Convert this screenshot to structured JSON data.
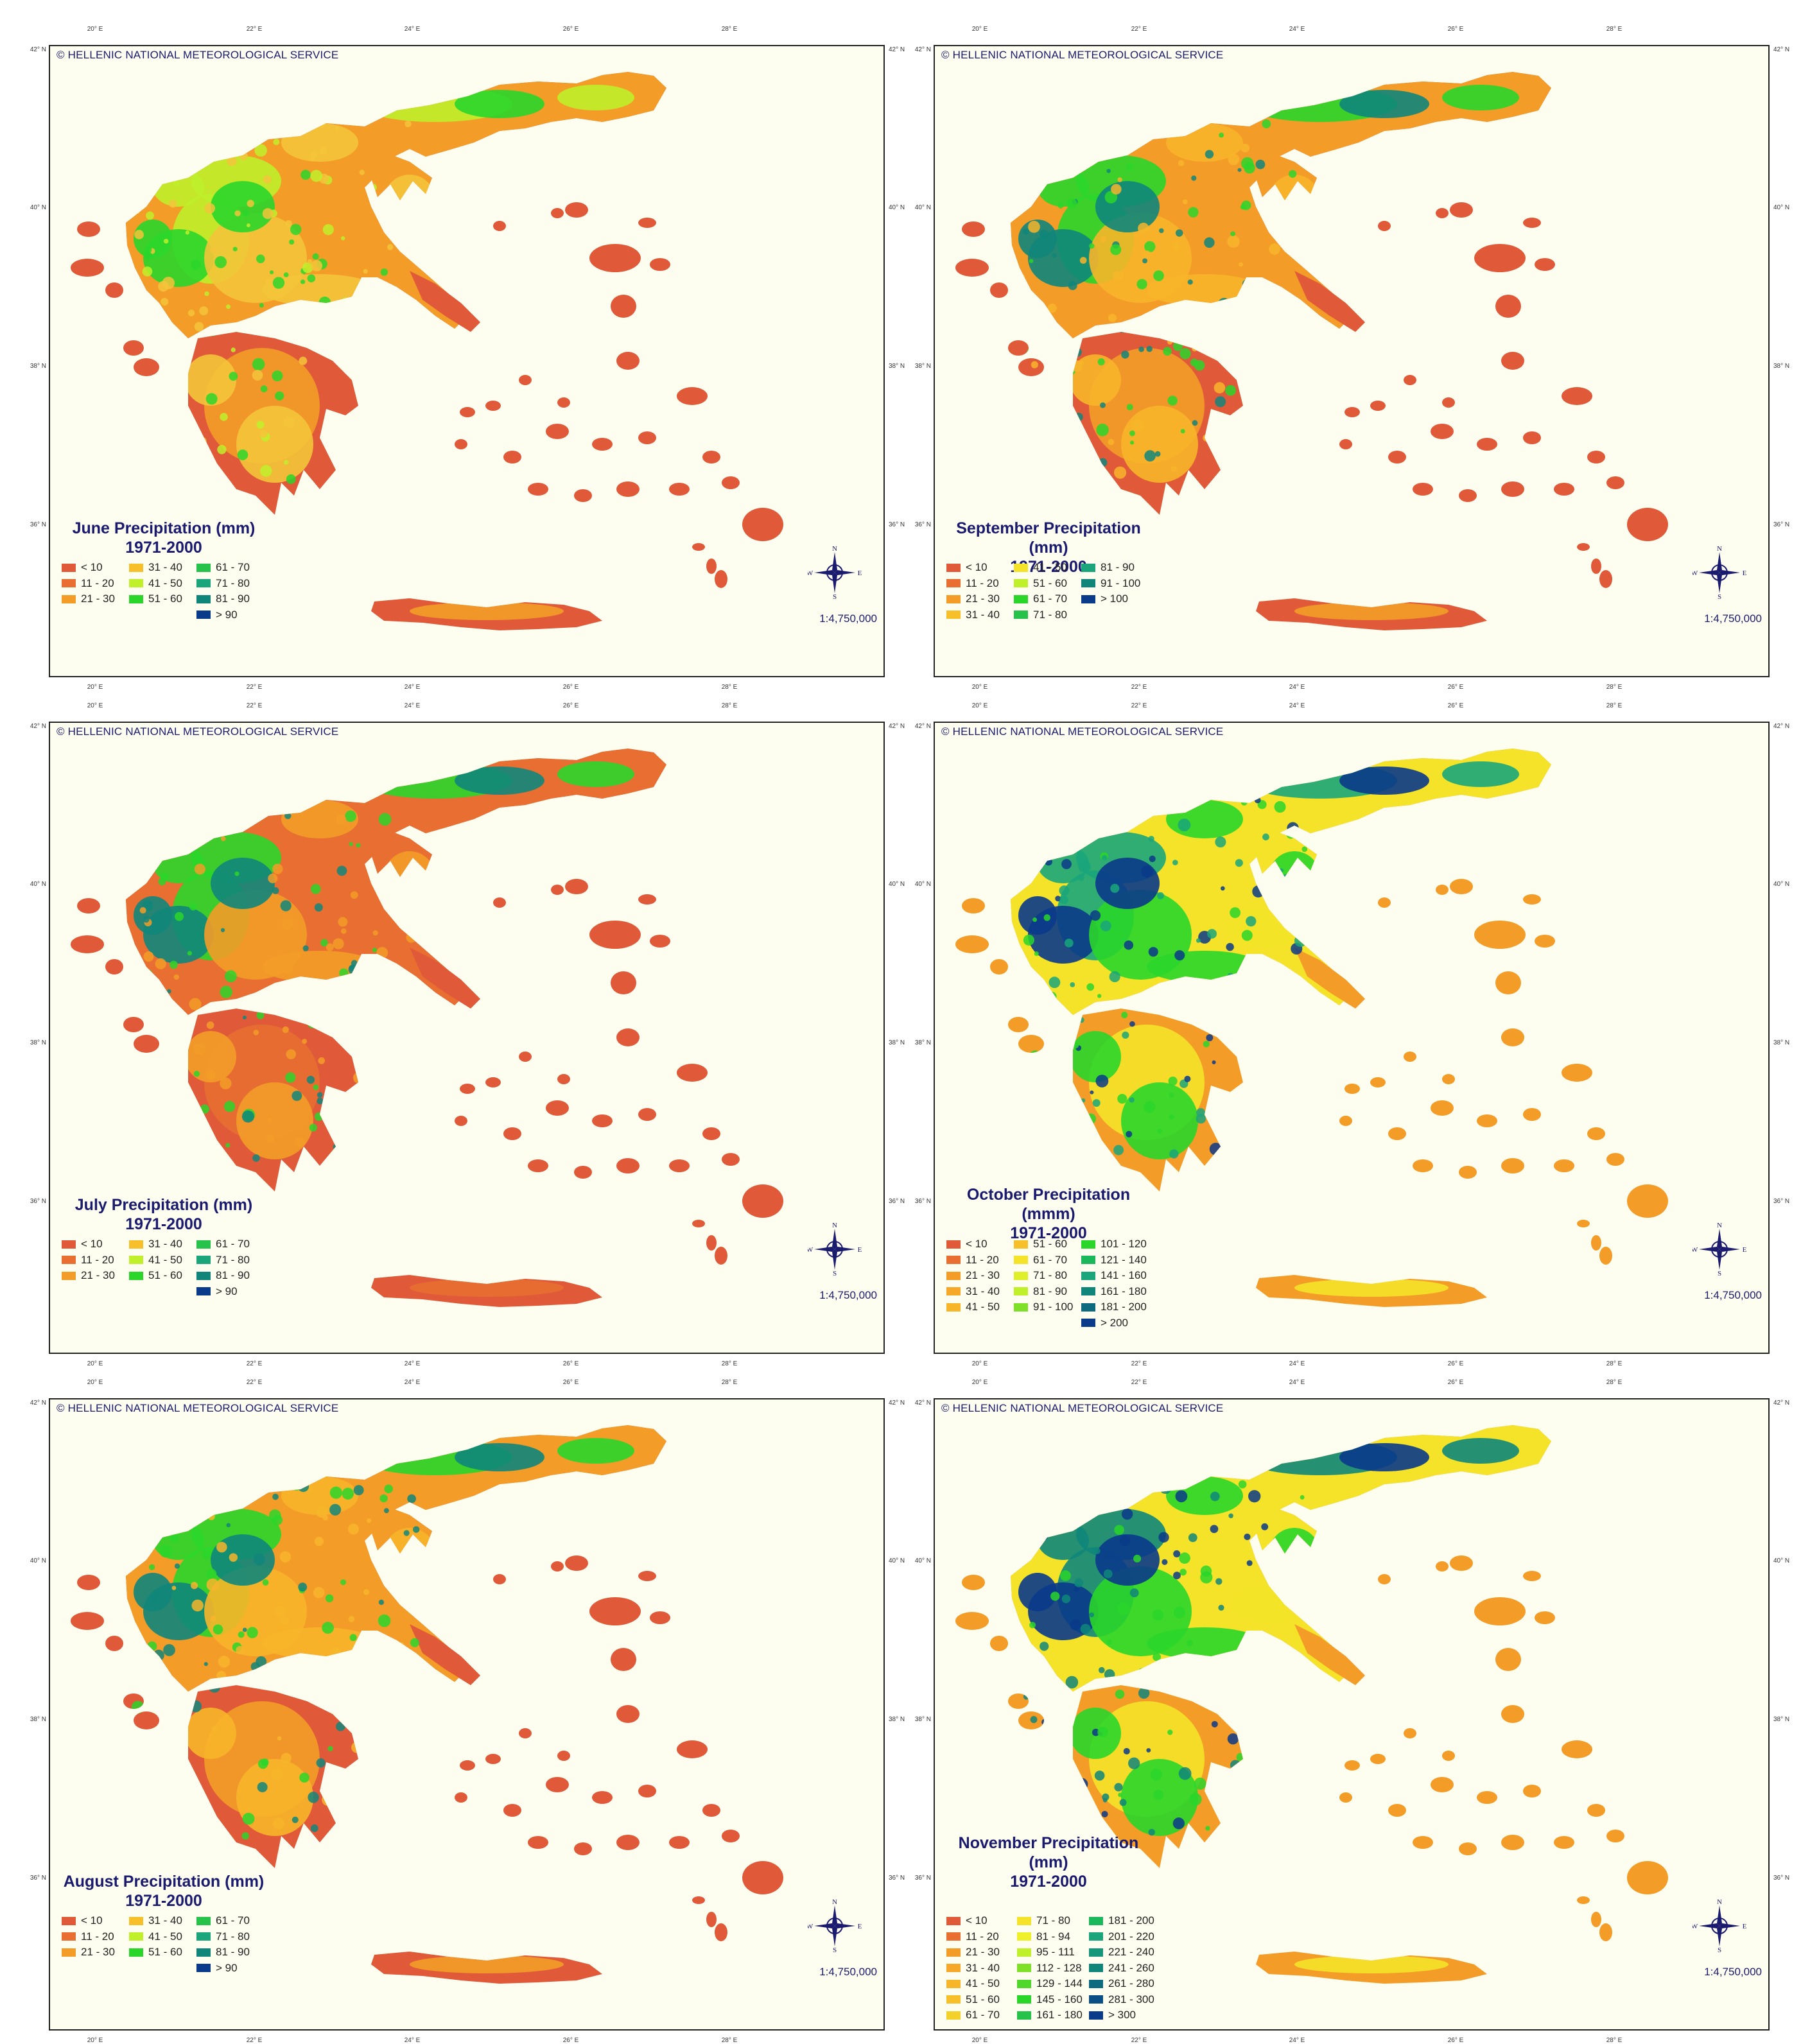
{
  "copyright": "© HELLENIC NATIONAL METEOROLOGICAL SERVICE",
  "scale": "1:4,750,000",
  "compass": {
    "n": "N",
    "s": "S",
    "e": "E",
    "w": "W"
  },
  "longitude_ticks": [
    "20° E",
    "22° E",
    "24° E",
    "26° E",
    "28° E"
  ],
  "latitude_ticks": [
    "42° N",
    "40° N",
    "38° N",
    "36° N"
  ],
  "colors": {
    "sea": "#fdfdf0",
    "red": "#e05a3a",
    "darkorange": "#e86e32",
    "orange": "#f39c28",
    "lightorange": "#f7b52a",
    "yellow": "#f4e328",
    "lime": "#bff02a",
    "green": "#2ad62a",
    "teal": "#1aa67a",
    "darkteal": "#10867a",
    "navy": "#0a3a8a",
    "darknavy": "#041d5e"
  },
  "maps": [
    {
      "id": "june",
      "title_line1": "June Precipitation (mm)",
      "title_line2": "1971-2000",
      "palette": [
        "#e05a3a",
        "#f39c28",
        "#f4c43a",
        "#bff02a",
        "#2ad62a"
      ],
      "legend_columns": [
        [
          {
            "label": "< 10",
            "color": "#e05a3a"
          },
          {
            "label": "11 - 20",
            "color": "#e86e32"
          },
          {
            "label": "21 - 30",
            "color": "#f39c28"
          }
        ],
        [
          {
            "label": "31 - 40",
            "color": "#f7c02a"
          },
          {
            "label": "41 - 50",
            "color": "#bff02a"
          },
          {
            "label": "51 - 60",
            "color": "#2ad62a"
          }
        ],
        [
          {
            "label": "61 - 70",
            "color": "#26c24a"
          },
          {
            "label": "71 - 80",
            "color": "#1aa67a"
          },
          {
            "label": "81 - 90",
            "color": "#10867a"
          },
          {
            "label": "> 90",
            "color": "#0a3a8a"
          }
        ]
      ]
    },
    {
      "id": "september",
      "title_line1": "September Precipitation (mm)",
      "title_line2": "1971-2000",
      "palette": [
        "#e05a3a",
        "#f39c28",
        "#f7b52a",
        "#2ad62a",
        "#10867a"
      ],
      "legend_columns": [
        [
          {
            "label": "< 10",
            "color": "#e05a3a"
          },
          {
            "label": "11 - 20",
            "color": "#e86e32"
          },
          {
            "label": "21 - 30",
            "color": "#f39c28"
          },
          {
            "label": "31 - 40",
            "color": "#f7c02a"
          }
        ],
        [
          {
            "label": "41 - 50",
            "color": "#f4e328"
          },
          {
            "label": "51 - 60",
            "color": "#bff02a"
          },
          {
            "label": "61 - 70",
            "color": "#2ad62a"
          },
          {
            "label": "71 - 80",
            "color": "#26c24a"
          }
        ],
        [
          {
            "label": "81 - 90",
            "color": "#1aa67a"
          },
          {
            "label": "91 - 100",
            "color": "#10867a"
          },
          {
            "label": "> 100",
            "color": "#0a3a8a"
          }
        ]
      ]
    },
    {
      "id": "july",
      "title_line1": "July Precipitation (mm)",
      "title_line2": "1971-2000",
      "palette": [
        "#e05a3a",
        "#e86e32",
        "#f39c28",
        "#2ad62a",
        "#10867a"
      ],
      "legend_columns": [
        [
          {
            "label": "< 10",
            "color": "#e05a3a"
          },
          {
            "label": "11 - 20",
            "color": "#e86e32"
          },
          {
            "label": "21 - 30",
            "color": "#f39c28"
          }
        ],
        [
          {
            "label": "31 - 40",
            "color": "#f7c02a"
          },
          {
            "label": "41 - 50",
            "color": "#bff02a"
          },
          {
            "label": "51 - 60",
            "color": "#2ad62a"
          }
        ],
        [
          {
            "label": "61 - 70",
            "color": "#26c24a"
          },
          {
            "label": "71 - 80",
            "color": "#1aa67a"
          },
          {
            "label": "81 - 90",
            "color": "#10867a"
          },
          {
            "label": "> 90",
            "color": "#0a3a8a"
          }
        ]
      ]
    },
    {
      "id": "october",
      "title_line1": "October Precipitation (mmm)",
      "title_line2": "1971-2000",
      "palette": [
        "#f39c28",
        "#f4e328",
        "#2ad62a",
        "#1aa67a",
        "#0a3a8a"
      ],
      "legend_columns": [
        [
          {
            "label": "< 10",
            "color": "#e05a3a"
          },
          {
            "label": "11 - 20",
            "color": "#e86e32"
          },
          {
            "label": "21 - 30",
            "color": "#f39c28"
          },
          {
            "label": "31 - 40",
            "color": "#f5a82a"
          },
          {
            "label": "41 - 50",
            "color": "#f7b52a"
          }
        ],
        [
          {
            "label": "51 - 60",
            "color": "#f7c02a"
          },
          {
            "label": "61 - 70",
            "color": "#f4e328"
          },
          {
            "label": "71 - 80",
            "color": "#dff02a"
          },
          {
            "label": "81 - 90",
            "color": "#bff02a"
          },
          {
            "label": "91 - 100",
            "color": "#7fe02a"
          }
        ],
        [
          {
            "label": "101 - 120",
            "color": "#2ad62a"
          },
          {
            "label": "121 - 140",
            "color": "#1ab85a"
          },
          {
            "label": "141 - 160",
            "color": "#1aa67a"
          },
          {
            "label": "161 - 180",
            "color": "#10867a"
          },
          {
            "label": "181 - 200",
            "color": "#0e6a7e"
          },
          {
            "label": "> 200",
            "color": "#0a3a8a"
          }
        ]
      ]
    },
    {
      "id": "august",
      "title_line1": "August Precipitation (mm)",
      "title_line2": "1971-2000",
      "palette": [
        "#e05a3a",
        "#f39c28",
        "#f7b52a",
        "#2ad62a",
        "#10867a"
      ],
      "legend_columns": [
        [
          {
            "label": "< 10",
            "color": "#e05a3a"
          },
          {
            "label": "11 - 20",
            "color": "#e86e32"
          },
          {
            "label": "21 - 30",
            "color": "#f39c28"
          }
        ],
        [
          {
            "label": "31 - 40",
            "color": "#f7c02a"
          },
          {
            "label": "41 - 50",
            "color": "#bff02a"
          },
          {
            "label": "51 - 60",
            "color": "#2ad62a"
          }
        ],
        [
          {
            "label": "61 - 70",
            "color": "#26c24a"
          },
          {
            "label": "71 - 80",
            "color": "#1aa67a"
          },
          {
            "label": "81 - 90",
            "color": "#10867a"
          },
          {
            "label": "> 90",
            "color": "#0a3a8a"
          }
        ]
      ]
    },
    {
      "id": "november",
      "title_line1": "November Precipitation (mm)",
      "title_line2": "1971-2000",
      "palette": [
        "#f39c28",
        "#f4e328",
        "#2ad62a",
        "#10867a",
        "#0a3a8a"
      ],
      "legend_columns": [
        [
          {
            "label": "< 10",
            "color": "#e05a3a"
          },
          {
            "label": "11 - 20",
            "color": "#e86e32"
          },
          {
            "label": "21 - 30",
            "color": "#f39c28"
          },
          {
            "label": "31 - 40",
            "color": "#f5a82a"
          },
          {
            "label": "41 - 50",
            "color": "#f7b52a"
          },
          {
            "label": "51 - 60",
            "color": "#f7c02a"
          },
          {
            "label": "61 - 70",
            "color": "#f4d02a"
          }
        ],
        [
          {
            "label": "71 - 80",
            "color": "#f4e328"
          },
          {
            "label": "81 - 94",
            "color": "#eef02a"
          },
          {
            "label": "95 - 111",
            "color": "#bff02a"
          },
          {
            "label": "112 - 128",
            "color": "#7fe02a"
          },
          {
            "label": "129 - 144",
            "color": "#4fd82a"
          },
          {
            "label": "145 - 160",
            "color": "#2ad62a"
          },
          {
            "label": "161 - 180",
            "color": "#26c24a"
          }
        ],
        [
          {
            "label": "181 - 200",
            "color": "#1ab85a"
          },
          {
            "label": "201 - 220",
            "color": "#1aa67a"
          },
          {
            "label": "221 - 240",
            "color": "#14967a"
          },
          {
            "label": "241 - 260",
            "color": "#10867a"
          },
          {
            "label": "261 - 280",
            "color": "#0e6a7e"
          },
          {
            "label": "281 - 300",
            "color": "#0c4f86"
          },
          {
            "label": "> 300",
            "color": "#0a3a8a"
          }
        ]
      ]
    }
  ]
}
